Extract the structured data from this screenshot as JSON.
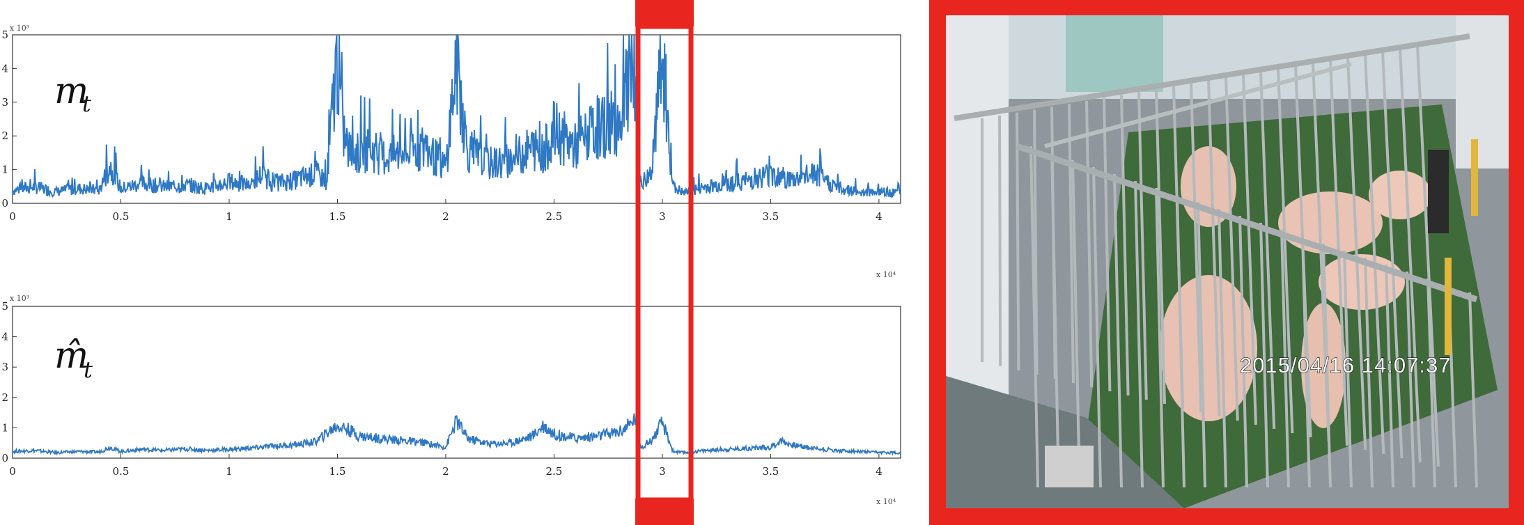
{
  "chart_data": [
    {
      "type": "line",
      "title": "",
      "symbol": "m",
      "subscript": "t",
      "xlim": [
        0,
        41000
      ],
      "ylim": [
        0,
        5000
      ],
      "xticks": [
        "0",
        "0.5",
        "1",
        "1.5",
        "2",
        "2.5",
        "3",
        "3.5",
        "4"
      ],
      "yticks": [
        "0",
        "1",
        "2",
        "3",
        "4",
        "5"
      ],
      "y_exponent_label": "x 10³",
      "x_exponent_label": "x 10⁴",
      "color": "#2e78c4",
      "series": [
        {
          "x": [
            0,
            1000,
            2000,
            3000,
            4000,
            4500,
            5000,
            6000,
            7000,
            8000,
            9000,
            10000,
            11000,
            11500,
            12000,
            13000,
            14000,
            14500,
            15000,
            15200,
            15500,
            16000,
            16500,
            17000,
            18000,
            19000,
            20000,
            20500,
            21000,
            22000,
            23000,
            24000,
            24500,
            25000,
            26000,
            27000,
            28000,
            28500,
            28800,
            29000,
            29500,
            30000,
            30500,
            31000,
            32000,
            33000,
            34000,
            35000,
            36000,
            37000,
            38000,
            39000,
            40000,
            41000
          ],
          "y": [
            400,
            500,
            350,
            450,
            400,
            1150,
            450,
            600,
            500,
            550,
            450,
            650,
            550,
            900,
            600,
            700,
            900,
            700,
            4600,
            2400,
            1600,
            1500,
            1700,
            1400,
            1500,
            1700,
            1100,
            4400,
            1600,
            1200,
            1300,
            1700,
            1500,
            2200,
            1700,
            2300,
            2500,
            3800,
            2800,
            600,
            900,
            4300,
            500,
            300,
            500,
            600,
            700,
            900,
            700,
            900,
            500,
            350,
            350,
            300
          ]
        }
      ]
    },
    {
      "type": "line",
      "title": "",
      "symbol": "m̂",
      "subscript": "t",
      "xlim": [
        0,
        41000
      ],
      "ylim": [
        0,
        5000
      ],
      "xticks": [
        "0",
        "0.5",
        "1",
        "1.5",
        "2",
        "2.5",
        "3",
        "3.5",
        "4"
      ],
      "yticks": [
        "0",
        "1",
        "2",
        "3",
        "4",
        "5"
      ],
      "y_exponent_label": "x 10³",
      "x_exponent_label": "x 10⁴",
      "color": "#2e78c4",
      "series": [
        {
          "x": [
            0,
            1000,
            2000,
            3000,
            4000,
            4500,
            5000,
            6000,
            7000,
            8000,
            9000,
            10000,
            11000,
            12000,
            13000,
            14000,
            15000,
            15500,
            16000,
            17000,
            18000,
            19000,
            20000,
            20500,
            21000,
            22000,
            23000,
            24000,
            24500,
            25000,
            26000,
            27000,
            28000,
            28500,
            28800,
            29000,
            29500,
            30000,
            30500,
            31000,
            32000,
            33000,
            34000,
            35000,
            35500,
            36000,
            37000,
            38000,
            39000,
            40000,
            41000
          ],
          "y": [
            300,
            350,
            250,
            300,
            280,
            500,
            300,
            400,
            350,
            420,
            350,
            400,
            450,
            550,
            600,
            750,
            1500,
            1300,
            1000,
            900,
            800,
            700,
            500,
            1700,
            900,
            650,
            700,
            1000,
            1500,
            1100,
            900,
            1000,
            1200,
            1500,
            1900,
            500,
            800,
            1600,
            300,
            250,
            350,
            400,
            450,
            500,
            800,
            600,
            450,
            350,
            300,
            250,
            250
          ]
        }
      ]
    }
  ],
  "video": {
    "timestamp": "2015/04/16  14:07:37"
  },
  "colors": {
    "highlight": "#e8251f",
    "line": "#2e78c4"
  }
}
